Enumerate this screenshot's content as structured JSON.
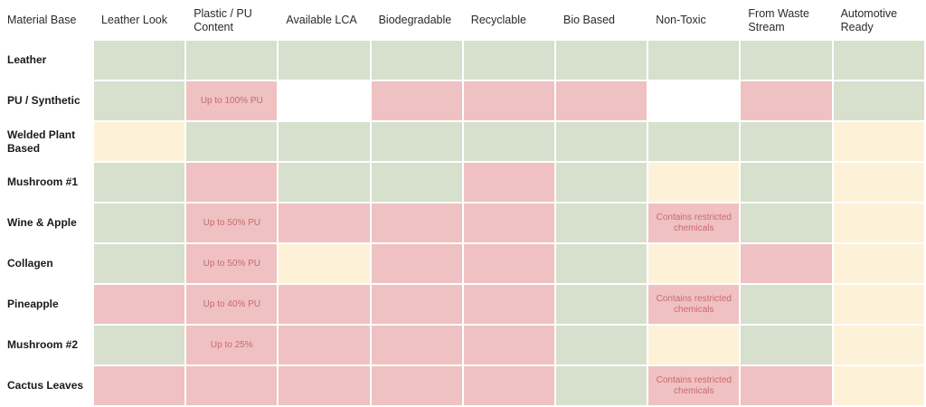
{
  "matrix": {
    "corner_label": "Material Base",
    "columns": [
      "Leather Look",
      "Plastic / PU Content",
      "Available LCA",
      "Biodegradable",
      "Recyclable",
      "Bio Based",
      "Non-Toxic",
      "From Waste Stream",
      "Automotive Ready"
    ],
    "rows": [
      {
        "label": "Leather",
        "cells": [
          {
            "status": "green",
            "text": ""
          },
          {
            "status": "green",
            "text": ""
          },
          {
            "status": "green",
            "text": ""
          },
          {
            "status": "green",
            "text": ""
          },
          {
            "status": "green",
            "text": ""
          },
          {
            "status": "green",
            "text": ""
          },
          {
            "status": "green",
            "text": ""
          },
          {
            "status": "green",
            "text": ""
          },
          {
            "status": "green",
            "text": ""
          }
        ]
      },
      {
        "label": "PU / Synthetic",
        "cells": [
          {
            "status": "green",
            "text": ""
          },
          {
            "status": "red",
            "text": "Up to 100% PU"
          },
          {
            "status": "white",
            "text": ""
          },
          {
            "status": "red",
            "text": ""
          },
          {
            "status": "red",
            "text": ""
          },
          {
            "status": "red",
            "text": ""
          },
          {
            "status": "white",
            "text": ""
          },
          {
            "status": "red",
            "text": ""
          },
          {
            "status": "green",
            "text": ""
          }
        ]
      },
      {
        "label": "Welded Plant Based",
        "cells": [
          {
            "status": "yellow",
            "text": ""
          },
          {
            "status": "green",
            "text": ""
          },
          {
            "status": "green",
            "text": ""
          },
          {
            "status": "green",
            "text": ""
          },
          {
            "status": "green",
            "text": ""
          },
          {
            "status": "green",
            "text": ""
          },
          {
            "status": "green",
            "text": ""
          },
          {
            "status": "green",
            "text": ""
          },
          {
            "status": "yellow",
            "text": ""
          }
        ]
      },
      {
        "label": "Mushroom #1",
        "cells": [
          {
            "status": "green",
            "text": ""
          },
          {
            "status": "red",
            "text": ""
          },
          {
            "status": "green",
            "text": ""
          },
          {
            "status": "green",
            "text": ""
          },
          {
            "status": "red",
            "text": ""
          },
          {
            "status": "green",
            "text": ""
          },
          {
            "status": "yellow",
            "text": ""
          },
          {
            "status": "green",
            "text": ""
          },
          {
            "status": "yellow",
            "text": ""
          }
        ]
      },
      {
        "label": "Wine & Apple",
        "cells": [
          {
            "status": "green",
            "text": ""
          },
          {
            "status": "red",
            "text": "Up to 50% PU"
          },
          {
            "status": "red",
            "text": ""
          },
          {
            "status": "red",
            "text": ""
          },
          {
            "status": "red",
            "text": ""
          },
          {
            "status": "green",
            "text": ""
          },
          {
            "status": "red",
            "text": "Contains restricted chemicals"
          },
          {
            "status": "green",
            "text": ""
          },
          {
            "status": "yellow",
            "text": ""
          }
        ]
      },
      {
        "label": "Collagen",
        "cells": [
          {
            "status": "green",
            "text": ""
          },
          {
            "status": "red",
            "text": "Up to 50% PU"
          },
          {
            "status": "yellow",
            "text": ""
          },
          {
            "status": "red",
            "text": ""
          },
          {
            "status": "red",
            "text": ""
          },
          {
            "status": "green",
            "text": ""
          },
          {
            "status": "yellow",
            "text": ""
          },
          {
            "status": "red",
            "text": ""
          },
          {
            "status": "yellow",
            "text": ""
          }
        ]
      },
      {
        "label": "Pineapple",
        "cells": [
          {
            "status": "red",
            "text": ""
          },
          {
            "status": "red",
            "text": "Up to 40% PU"
          },
          {
            "status": "red",
            "text": ""
          },
          {
            "status": "red",
            "text": ""
          },
          {
            "status": "red",
            "text": ""
          },
          {
            "status": "green",
            "text": ""
          },
          {
            "status": "red",
            "text": "Contains restricted chemicals"
          },
          {
            "status": "green",
            "text": ""
          },
          {
            "status": "yellow",
            "text": ""
          }
        ]
      },
      {
        "label": "Mushroom #2",
        "cells": [
          {
            "status": "green",
            "text": ""
          },
          {
            "status": "red",
            "text": "Up to 25%"
          },
          {
            "status": "red",
            "text": ""
          },
          {
            "status": "red",
            "text": ""
          },
          {
            "status": "red",
            "text": ""
          },
          {
            "status": "green",
            "text": ""
          },
          {
            "status": "yellow",
            "text": ""
          },
          {
            "status": "green",
            "text": ""
          },
          {
            "status": "yellow",
            "text": ""
          }
        ]
      },
      {
        "label": "Cactus Leaves",
        "cells": [
          {
            "status": "red",
            "text": ""
          },
          {
            "status": "red",
            "text": ""
          },
          {
            "status": "red",
            "text": ""
          },
          {
            "status": "red",
            "text": ""
          },
          {
            "status": "red",
            "text": ""
          },
          {
            "status": "green",
            "text": ""
          },
          {
            "status": "red",
            "text": "Contains restricted chemicals"
          },
          {
            "status": "red",
            "text": ""
          },
          {
            "status": "yellow",
            "text": ""
          }
        ]
      }
    ]
  },
  "colors": {
    "green": "#d6e0cd",
    "red": "#efc1c2",
    "yellow": "#fdf2d8",
    "white": "#ffffff",
    "note_text": "#c96a6e"
  }
}
